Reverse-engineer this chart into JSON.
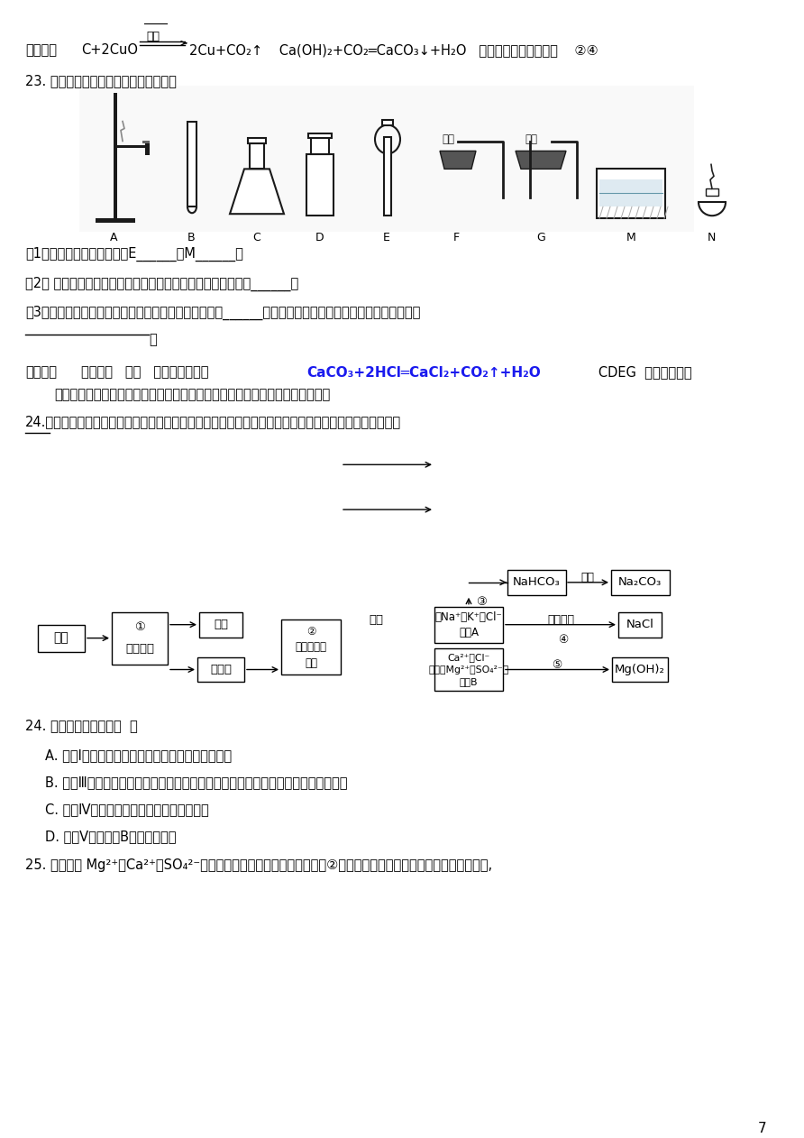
{
  "background_color": "#ffffff",
  "page_number": "7",
  "answer1_bracket": "【答案】",
  "answer1_text": "C+2CuO",
  "answer1_high_temp": "高温",
  "answer1_rest": "2Cu+CO₂↑    Ca(OH)₂+CO₂═CaCO₃↓+H₂O   把酒精灯换成酒精喷灯    ②④",
  "q23_text": "23. 实验室制取气体的部分仪器如下图。",
  "q23_sub1": "（1）写出指定仪器的名称：E______，M______。",
  "q23_sub2": "（2） 实验室制取二氧化碳所用的药品是，反应的化学方程式是______。",
  "q23_sub3": "（3）实验室制取并收集一瓶二氧化碳，所选用的仪器是______（填序号），检查发生装置气密性的方法是：",
  "answer2_bracket": "【答案】",
  "answer2_line1": "长颈漏斗   水槽   石灰石和稀盐酸",
  "answer2_chem": "CaCO₃+2HCl=CaCl₂+CO₂↑+H₂O",
  "answer2_text": "CDEG  用止水夹夹住",
  "answer2_line2": "橡皮管，向长颈漏斗内注水，一段时间后，在长颈漏斗内形成一段稳定的水柱。",
  "q24_intro": "24.如图是某设计院设计的综合利用海水的流程图。请你参与某兴趣小组的探究活动，完成下面两个小题：",
  "q24_mcq_label": "24. 下列说法正确的是（  ）",
  "q24_A": "A. 步骤Ⅰ反渗透膜法与滤纸过滤法在原理上是相同的",
  "q24_B": "B. 步骤Ⅲ是氨碱法制纯碱的过程，需要向饱和食盐水中先通入二氧化碳，再通入氨气",
  "q24_C": "C. 步骤Ⅳ可以采用降温结晶的方法得到精盐",
  "q24_D": "D. 步骤Ⅴ需向溶液B中加入石灰乳",
  "q25_text": "25. 浓海水中 Mg²⁺、Ca²⁺、SO₄²⁻，可用离子交换膜直接除去，如步骤②。离子交换膜是对特定离子的选择性透过膜,"
}
